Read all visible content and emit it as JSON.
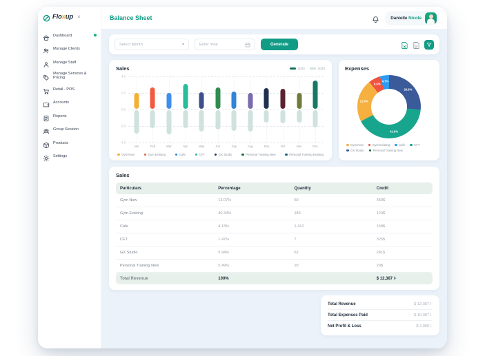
{
  "colors": {
    "accent": "#129c85",
    "accent_dark": "#0f8f70",
    "logo_x": "#f2b136",
    "main_bg": "#ebf2f9",
    "table_header_bg": "#e7f0ea",
    "bar_2023": "#cfe2de",
    "series_2024_pill": "#156d5e",
    "series_2023_pill": "#cfe2de"
  },
  "logo": {
    "part1": "Flo",
    "part2": "x",
    "part3": "up",
    "close_glyph": "×"
  },
  "header": {
    "title": "Balance Sheet",
    "user_first": "Danielle ",
    "user_last": "Nicole"
  },
  "sidebar": {
    "items": [
      {
        "label": "Dashboard",
        "icon": "dashboard-icon",
        "active": true
      },
      {
        "label": "Manage Clients",
        "icon": "manage-clients-icon",
        "active": false
      },
      {
        "label": "Manage Staff",
        "icon": "manage-staff-icon",
        "active": false
      },
      {
        "label": "Manage Services & Pricing",
        "icon": "services-pricing-icon",
        "active": false
      },
      {
        "label": "Retail - POS",
        "icon": "retail-pos-icon",
        "active": false
      },
      {
        "label": "Accounts",
        "icon": "accounts-icon",
        "active": false
      },
      {
        "label": "Reports",
        "icon": "reports-icon",
        "active": false
      },
      {
        "label": "Group Session",
        "icon": "group-session-icon",
        "active": false
      },
      {
        "label": "Products",
        "icon": "products-icon",
        "active": false
      },
      {
        "label": "Settings",
        "icon": "settings-icon",
        "active": false
      }
    ]
  },
  "filters": {
    "month_placeholder": "Select Month",
    "year_placeholder": "Enter Year",
    "generate_label": "Generate"
  },
  "chart_data": [
    {
      "type": "bar",
      "title": "Sales",
      "categories": [
        "Jan",
        "Feb",
        "Mar",
        "Apr",
        "May",
        "Jun",
        "July",
        "Aug",
        "Sep",
        "Oct",
        "Nov",
        "Dec"
      ],
      "series": [
        {
          "name": "2024",
          "values": [
            1.9,
            2.6,
            1.9,
            3.0,
            2.0,
            2.6,
            2.1,
            1.9,
            2.5,
            2.4,
            1.9,
            3.4
          ]
        },
        {
          "name": "2023",
          "values": [
            -2.8,
            -2.2,
            -2.9,
            -2.2,
            -2.6,
            -2.3,
            -2.5,
            -2.6,
            -1.5,
            -1.6,
            -1.5,
            -2.1
          ]
        }
      ],
      "bar_colors_2024": [
        "#f2b136",
        "#f15b40",
        "#3e8eed",
        "#27bd9b",
        "#3f4e8c",
        "#2f8c4f",
        "#2f86d6",
        "#7a6aae",
        "#20304f",
        "#5a2231",
        "#6e7b3b",
        "#157a63"
      ],
      "bar_color_2023": "#cfe2de",
      "ylim": [
        -4,
        4
      ],
      "yticks": [
        {
          "value": 4,
          "label": "4.0"
        },
        {
          "value": 2,
          "label": "2.0"
        },
        {
          "value": 0,
          "label": "0.0"
        },
        {
          "value": -2,
          "label": "-2.0"
        },
        {
          "value": -4,
          "label": "-4.0"
        }
      ],
      "grid": true,
      "legend_position": "bottom",
      "legend": [
        {
          "label": "Gym New",
          "color": "#f2b136"
        },
        {
          "label": "Gym Existing",
          "color": "#f15b40"
        },
        {
          "label": "Cafe",
          "color": "#2f86d6"
        },
        {
          "label": "CFT",
          "color": "#27bd9b"
        },
        {
          "label": "GX Studio",
          "color": "#20304f"
        },
        {
          "label": "Personal Training New",
          "color": "#176b3c"
        },
        {
          "label": "Personal Training Existing",
          "color": "#1a5e82"
        }
      ]
    },
    {
      "type": "pie",
      "title": "Expenses",
      "slices": [
        {
          "label": "GX Studio",
          "value": 26.6,
          "display": "26.6%",
          "color": "#3b5a9a"
        },
        {
          "label": "CFT",
          "value": 41.0,
          "display": "41.0%",
          "color": "#17a58e"
        },
        {
          "label": "Gym New",
          "value": 22.0,
          "display": "22.0%",
          "color": "#f5b040"
        },
        {
          "label": "Gym Existing",
          "value": 6.0,
          "display": "6.0%",
          "color": "#f0533f"
        },
        {
          "label": "Cafe",
          "value": 4.7,
          "display": "4.7%",
          "color": "#2e9bf0"
        }
      ],
      "legend_position": "bottom",
      "legend": [
        {
          "label": "Gym New",
          "color": "#f5b040"
        },
        {
          "label": "Gym Existing",
          "color": "#f0533f"
        },
        {
          "label": "Cafe",
          "color": "#2e9bf0"
        },
        {
          "label": "CFT",
          "color": "#17a58e"
        },
        {
          "label": "GX Studio",
          "color": "#3b5a9a"
        },
        {
          "label": "Personal Training New",
          "color": "#176b3c"
        }
      ]
    }
  ],
  "sales_chart": {
    "title": "Sales"
  },
  "expenses_chart": {
    "title": "Expenses"
  },
  "table": {
    "title": "Sales",
    "headers": [
      "Particulars",
      "Percentage",
      "Quantity",
      "Credit"
    ],
    "rows": [
      {
        "particulars": "Gym New",
        "percentage": "13.07%",
        "quantity": "50",
        "credit": "450$"
      },
      {
        "particulars": "Gym Existing",
        "percentage": "40.34%",
        "quantity": "189",
        "credit": "124$"
      },
      {
        "particulars": "Cafe",
        "percentage": "4.13%",
        "quantity": "1,412",
        "credit": "158$"
      },
      {
        "particulars": "CFT",
        "percentage": "1.47%",
        "quantity": "7",
        "credit": "325$"
      },
      {
        "particulars": "GX Studio",
        "percentage": "9.94%",
        "quantity": "62",
        "credit": "241$"
      },
      {
        "particulars": "Personal Training New",
        "percentage": "5.49%",
        "quantity": "20",
        "credit": "20$"
      }
    ],
    "total_row": {
      "particulars": "Total Revenue",
      "percentage": "100%",
      "quantity": "",
      "credit": "$ 12,387 /-"
    }
  },
  "summary": {
    "rows": [
      {
        "label": "Total Revenue",
        "value": "$ 12,387 /-"
      },
      {
        "label": "Total Expenses Paid",
        "value": "$ 10,387 /-"
      },
      {
        "label": "Net Profit & Loss",
        "value": "$ 2,000 /-"
      }
    ]
  }
}
